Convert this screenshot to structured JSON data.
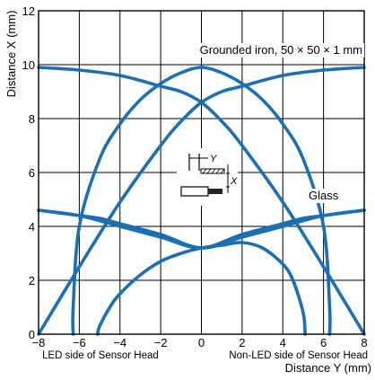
{
  "chart_data": {
    "type": "line",
    "xlabel": "Distance Y (mm)",
    "ylabel": "Distance X (mm)",
    "xlim": [
      -8,
      8
    ],
    "ylim": [
      0,
      12
    ],
    "xticks": [
      "−8",
      "−6",
      "−4",
      "−2",
      "0",
      "2",
      "4",
      "6",
      "8"
    ],
    "yticks": [
      "0",
      "2",
      "4",
      "6",
      "8",
      "10",
      "12"
    ],
    "grid": true,
    "xlabel_left": "LED side of Sensor Head",
    "xlabel_right": "Non-LED side of Sensor Head",
    "curve_color": "#1a6fb5",
    "series": [
      {
        "name": "Grounded iron, 50 × 50 × 1 mm",
        "curves": [
          {
            "x": [
              -6.3,
              -6.3,
              -6.0,
              -5.0,
              -4.0,
              -3.0,
              -2.0,
              -1.0,
              0.0,
              1.0,
              2.0,
              3.0,
              4.0,
              5.0,
              6.0,
              6.3,
              6.3
            ],
            "y": [
              0.0,
              1.0,
              4.0,
              6.5,
              7.8,
              8.7,
              9.3,
              9.7,
              9.9,
              9.7,
              9.3,
              8.7,
              7.8,
              6.5,
              4.0,
              1.0,
              0.0
            ]
          },
          {
            "x": [
              -8.0,
              -6.0,
              -4.0,
              -2.0,
              -1.0,
              0.0,
              1.0,
              2.0,
              4.0,
              6.0,
              8.0
            ],
            "y": [
              9.9,
              9.8,
              9.6,
              9.2,
              9.0,
              8.6,
              7.9,
              7.0,
              4.9,
              2.5,
              0.0
            ]
          },
          {
            "x": [
              -8.0,
              -6.0,
              -4.0,
              -2.0,
              -1.0,
              0.0,
              1.0,
              2.0,
              4.0,
              6.0,
              8.0
            ],
            "y": [
              0.0,
              2.5,
              4.9,
              7.0,
              7.9,
              8.6,
              9.0,
              9.2,
              9.6,
              9.8,
              9.9
            ]
          }
        ],
        "label_x": 7.2,
        "label_y": 10.4
      },
      {
        "name": "Glass",
        "curves": [
          {
            "x": [
              -5.1,
              -5.0,
              -4.5,
              -4.0,
              -3.0,
              -2.0,
              -1.0,
              0.0,
              1.0,
              2.0,
              3.0,
              4.0,
              4.5,
              5.0,
              5.1
            ],
            "y": [
              0.0,
              0.3,
              1.0,
              1.5,
              2.2,
              2.7,
              3.0,
              3.2,
              3.3,
              3.4,
              3.2,
              2.6,
              2.0,
              0.8,
              0.0
            ]
          },
          {
            "x": [
              -8.0,
              -6.0,
              -4.0,
              -2.0,
              0.0,
              2.0,
              4.0,
              5.0,
              6.0,
              7.0,
              8.0
            ],
            "y": [
              4.6,
              4.4,
              4.0,
              3.6,
              3.2,
              3.7,
              4.1,
              4.3,
              4.4,
              4.5,
              4.6
            ]
          },
          {
            "x": [
              -8.0,
              -7.0,
              -6.0,
              -5.0,
              -4.0,
              -2.0,
              0.0,
              2.0,
              4.0,
              6.0,
              8.0
            ],
            "y": [
              4.6,
              4.5,
              4.4,
              4.3,
              4.1,
              3.7,
              3.2,
              3.6,
              4.0,
              4.4,
              4.6
            ]
          }
        ],
        "label_x": 6.0,
        "label_y": 5.0
      }
    ]
  }
}
